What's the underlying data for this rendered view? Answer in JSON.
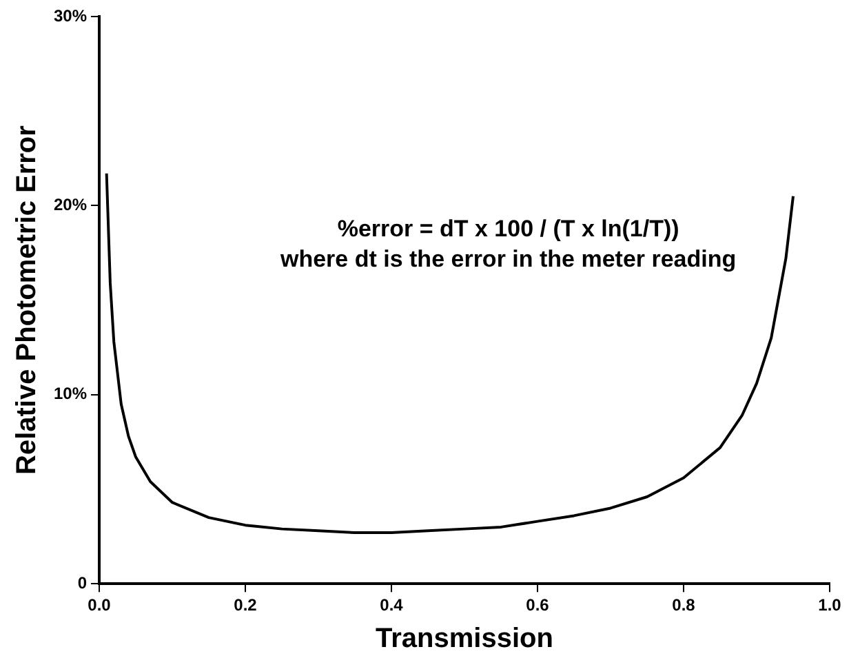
{
  "chart_data": {
    "type": "line",
    "xlabel": "Transmission",
    "ylabel": "Relative Photometric Error",
    "x": [
      0.01,
      0.015,
      0.02,
      0.03,
      0.04,
      0.05,
      0.07,
      0.1,
      0.15,
      0.2,
      0.25,
      0.3,
      0.35,
      0.4,
      0.45,
      0.5,
      0.55,
      0.6,
      0.65,
      0.7,
      0.75,
      0.8,
      0.85,
      0.88,
      0.9,
      0.92,
      0.94,
      0.95
    ],
    "series": [
      {
        "color": "#000000",
        "values": [
          21.7,
          15.9,
          12.8,
          9.5,
          7.8,
          6.7,
          5.4,
          4.3,
          3.5,
          3.1,
          2.9,
          2.8,
          2.7,
          2.7,
          2.8,
          2.9,
          3.0,
          3.3,
          3.6,
          4.0,
          4.6,
          5.6,
          7.2,
          8.9,
          10.6,
          13.0,
          17.2,
          20.5
        ]
      }
    ],
    "xlim": [
      0,
      1
    ],
    "xticks": [
      {
        "value": 0,
        "label": "0.0"
      },
      {
        "value": 0.2,
        "label": "0.2"
      },
      {
        "value": 0.4,
        "label": "0.4"
      },
      {
        "value": 0.6,
        "label": "0.6"
      },
      {
        "value": 0.8,
        "label": "0.8"
      },
      {
        "value": 1,
        "label": "1.0"
      }
    ],
    "ylim": [
      0,
      30
    ],
    "yticks": [
      0,
      {
        "value": 10,
        "label": "10%"
      },
      {
        "value": 20,
        "label": "20%"
      },
      {
        "value": 30,
        "label": "30%"
      }
    ],
    "grid": false,
    "legend": false,
    "marker": "none",
    "line_style": "solid",
    "annotations": [
      "%error = dT x 100 / (T x ln(1/T))",
      "where dt is the error in the meter reading"
    ]
  }
}
